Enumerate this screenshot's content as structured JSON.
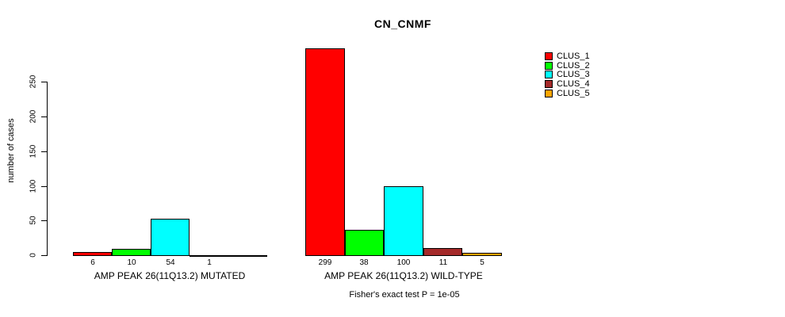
{
  "chart_data": {
    "type": "bar",
    "title": "CN_CNMF",
    "xlabel": "",
    "ylabel": "number of cases",
    "ylim": [
      0,
      250
    ],
    "y_ticks": [
      0,
      50,
      100,
      150,
      200,
      250
    ],
    "grid": false,
    "legend_position": "top-right",
    "series": [
      {
        "name": "CLUS_1",
        "color": "#FF0000"
      },
      {
        "name": "CLUS_2",
        "color": "#00FF00"
      },
      {
        "name": "CLUS_3",
        "color": "#00FFFF"
      },
      {
        "name": "CLUS_4",
        "color": "#A52A2A"
      },
      {
        "name": "CLUS_5",
        "color": "#FFA500"
      }
    ],
    "groups": [
      {
        "label": "AMP PEAK 26(11Q13.2) MUTATED",
        "values": [
          6,
          10,
          54,
          1,
          0
        ],
        "value_labels": [
          "6",
          "10",
          "54",
          "1",
          ""
        ]
      },
      {
        "label": "AMP PEAK 26(11Q13.2) WILD-TYPE",
        "values": [
          299,
          38,
          100,
          11,
          5
        ],
        "value_labels": [
          "299",
          "38",
          "100",
          "11",
          "5"
        ]
      }
    ],
    "footnote": "Fisher's exact test P = 1e-05"
  },
  "colors": {
    "background": "#FFFFFF",
    "axis": "#000000",
    "text": "#000000"
  }
}
